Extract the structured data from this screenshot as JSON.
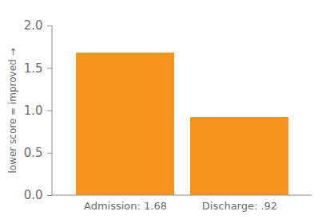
{
  "chart_data": {
    "type": "bar",
    "categories": [
      "Admission: 1.68",
      "Discharge: .92"
    ],
    "values": [
      1.68,
      0.92
    ],
    "color": "#f7941d",
    "y_label": "lower score = improved",
    "ylim": [
      0,
      2
    ],
    "yticks": [
      {
        "value": 0,
        "label": "0.0"
      },
      {
        "value": 0.5,
        "label": "0.5"
      },
      {
        "value": 1,
        "label": "1.0"
      },
      {
        "value": 1.5,
        "label": "1.5"
      },
      {
        "value": 2,
        "label": "2.0"
      }
    ],
    "grid": false
  }
}
